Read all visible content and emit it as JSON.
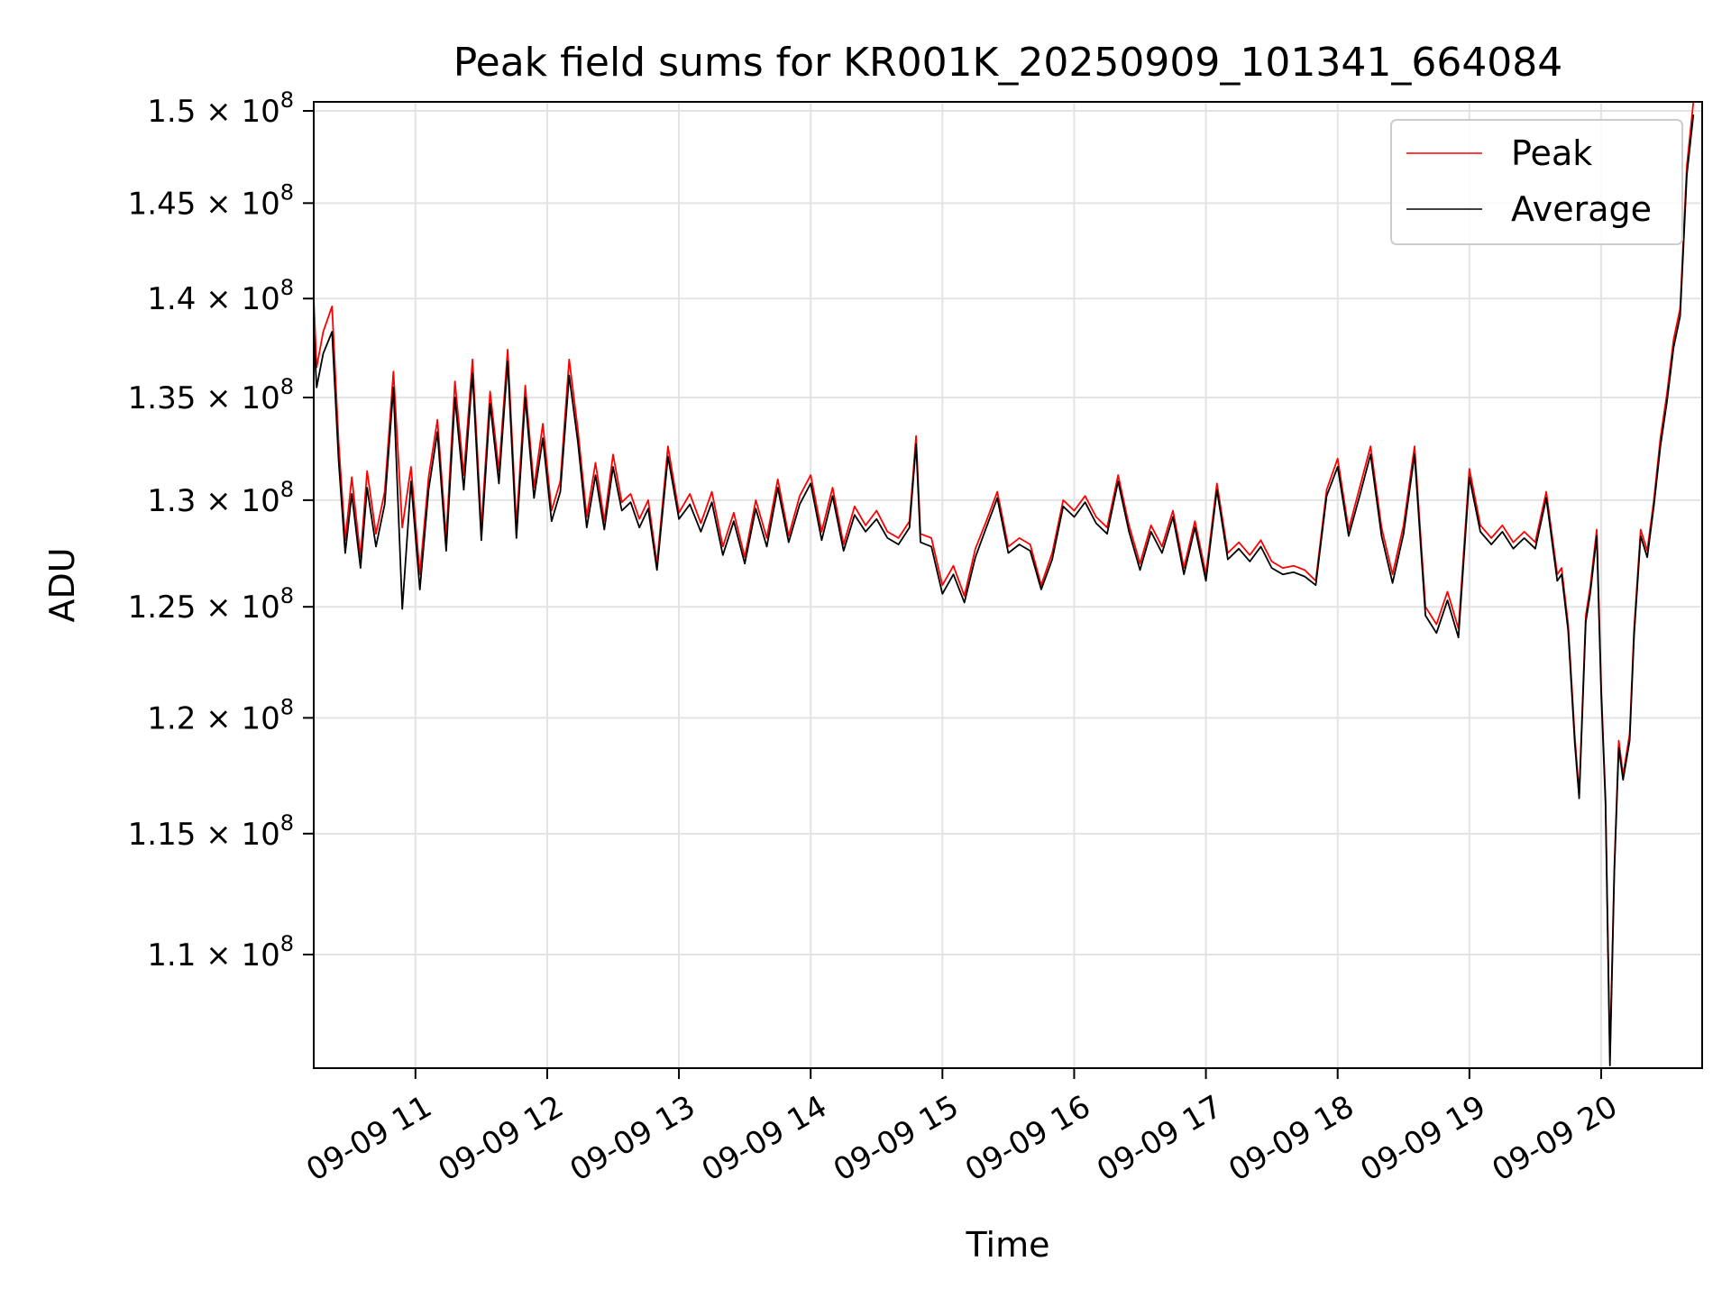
{
  "chart_data": {
    "type": "line",
    "title": "Peak field sums for KR001K_20250909_101341_664084",
    "xlabel": "Time",
    "ylabel": "ADU",
    "y_scale": "log",
    "grid": true,
    "legend_position": "top-right",
    "xlim": [
      "2025-09-09T10:13:41",
      "2025-09-09T20:46:00"
    ],
    "ylim": [
      105500000,
      150500000
    ],
    "x_ticks": [
      {
        "t": "2025-09-09T11:00",
        "label": "09-09 11"
      },
      {
        "t": "2025-09-09T12:00",
        "label": "09-09 12"
      },
      {
        "t": "2025-09-09T13:00",
        "label": "09-09 13"
      },
      {
        "t": "2025-09-09T14:00",
        "label": "09-09 14"
      },
      {
        "t": "2025-09-09T15:00",
        "label": "09-09 15"
      },
      {
        "t": "2025-09-09T16:00",
        "label": "09-09 16"
      },
      {
        "t": "2025-09-09T17:00",
        "label": "09-09 17"
      },
      {
        "t": "2025-09-09T18:00",
        "label": "09-09 18"
      },
      {
        "t": "2025-09-09T19:00",
        "label": "09-09 19"
      },
      {
        "t": "2025-09-09T20:00",
        "label": "09-09 20"
      }
    ],
    "y_ticks": [
      {
        "value": 110000000,
        "mantissa": "1.1",
        "exponent": "8"
      },
      {
        "value": 115000000,
        "mantissa": "1.15",
        "exponent": "8"
      },
      {
        "value": 120000000,
        "mantissa": "1.2",
        "exponent": "8"
      },
      {
        "value": 125000000,
        "mantissa": "1.25",
        "exponent": "8"
      },
      {
        "value": 130000000,
        "mantissa": "1.3",
        "exponent": "8"
      },
      {
        "value": 135000000,
        "mantissa": "1.35",
        "exponent": "8"
      },
      {
        "value": 140000000,
        "mantissa": "1.4",
        "exponent": "8"
      },
      {
        "value": 145000000,
        "mantissa": "1.45",
        "exponent": "8"
      },
      {
        "value": 150000000,
        "mantissa": "1.5",
        "exponent": "8"
      }
    ],
    "y_tick_base": "10",
    "times": [
      "2025-09-09T10:13:41",
      "2025-09-09T10:15",
      "2025-09-09T10:18",
      "2025-09-09T10:22",
      "2025-09-09T10:25",
      "2025-09-09T10:28",
      "2025-09-09T10:31",
      "2025-09-09T10:35",
      "2025-09-09T10:38",
      "2025-09-09T10:42",
      "2025-09-09T10:46",
      "2025-09-09T10:50",
      "2025-09-09T10:54",
      "2025-09-09T10:58",
      "2025-09-09T11:02",
      "2025-09-09T11:06",
      "2025-09-09T11:10",
      "2025-09-09T11:14",
      "2025-09-09T11:18",
      "2025-09-09T11:22",
      "2025-09-09T11:26",
      "2025-09-09T11:30",
      "2025-09-09T11:34",
      "2025-09-09T11:38",
      "2025-09-09T11:42",
      "2025-09-09T11:46",
      "2025-09-09T11:50",
      "2025-09-09T11:54",
      "2025-09-09T11:58",
      "2025-09-09T12:02",
      "2025-09-09T12:06",
      "2025-09-09T12:10",
      "2025-09-09T12:14",
      "2025-09-09T12:18",
      "2025-09-09T12:22",
      "2025-09-09T12:26",
      "2025-09-09T12:30",
      "2025-09-09T12:34",
      "2025-09-09T12:38",
      "2025-09-09T12:42",
      "2025-09-09T12:46",
      "2025-09-09T12:50",
      "2025-09-09T12:55",
      "2025-09-09T13:00",
      "2025-09-09T13:05",
      "2025-09-09T13:10",
      "2025-09-09T13:15",
      "2025-09-09T13:20",
      "2025-09-09T13:25",
      "2025-09-09T13:30",
      "2025-09-09T13:35",
      "2025-09-09T13:40",
      "2025-09-09T13:45",
      "2025-09-09T13:50",
      "2025-09-09T13:55",
      "2025-09-09T14:00",
      "2025-09-09T14:05",
      "2025-09-09T14:10",
      "2025-09-09T14:15",
      "2025-09-09T14:20",
      "2025-09-09T14:25",
      "2025-09-09T14:30",
      "2025-09-09T14:35",
      "2025-09-09T14:40",
      "2025-09-09T14:45",
      "2025-09-09T14:48",
      "2025-09-09T14:50",
      "2025-09-09T14:55",
      "2025-09-09T15:00",
      "2025-09-09T15:05",
      "2025-09-09T15:10",
      "2025-09-09T15:15",
      "2025-09-09T15:20",
      "2025-09-09T15:25",
      "2025-09-09T15:30",
      "2025-09-09T15:35",
      "2025-09-09T15:40",
      "2025-09-09T15:45",
      "2025-09-09T15:50",
      "2025-09-09T15:55",
      "2025-09-09T16:00",
      "2025-09-09T16:05",
      "2025-09-09T16:10",
      "2025-09-09T16:15",
      "2025-09-09T16:20",
      "2025-09-09T16:25",
      "2025-09-09T16:30",
      "2025-09-09T16:35",
      "2025-09-09T16:40",
      "2025-09-09T16:45",
      "2025-09-09T16:50",
      "2025-09-09T16:55",
      "2025-09-09T17:00",
      "2025-09-09T17:05",
      "2025-09-09T17:10",
      "2025-09-09T17:15",
      "2025-09-09T17:20",
      "2025-09-09T17:25",
      "2025-09-09T17:30",
      "2025-09-09T17:35",
      "2025-09-09T17:40",
      "2025-09-09T17:45",
      "2025-09-09T17:50",
      "2025-09-09T17:55",
      "2025-09-09T18:00",
      "2025-09-09T18:05",
      "2025-09-09T18:10",
      "2025-09-09T18:15",
      "2025-09-09T18:20",
      "2025-09-09T18:25",
      "2025-09-09T18:30",
      "2025-09-09T18:35",
      "2025-09-09T18:40",
      "2025-09-09T18:45",
      "2025-09-09T18:50",
      "2025-09-09T18:55",
      "2025-09-09T19:00",
      "2025-09-09T19:05",
      "2025-09-09T19:10",
      "2025-09-09T19:15",
      "2025-09-09T19:20",
      "2025-09-09T19:25",
      "2025-09-09T19:30",
      "2025-09-09T19:35",
      "2025-09-09T19:40",
      "2025-09-09T19:42",
      "2025-09-09T19:45",
      "2025-09-09T19:48",
      "2025-09-09T19:50",
      "2025-09-09T19:53",
      "2025-09-09T19:55",
      "2025-09-09T19:58",
      "2025-09-09T20:00",
      "2025-09-09T20:02",
      "2025-09-09T20:04",
      "2025-09-09T20:06",
      "2025-09-09T20:08",
      "2025-09-09T20:10",
      "2025-09-09T20:13",
      "2025-09-09T20:15",
      "2025-09-09T20:18",
      "2025-09-09T20:21",
      "2025-09-09T20:24",
      "2025-09-09T20:27",
      "2025-09-09T20:30",
      "2025-09-09T20:33",
      "2025-09-09T20:36",
      "2025-09-09T20:39",
      "2025-09-09T20:42",
      "2025-09-09T20:44",
      "2025-09-09T20:46"
    ],
    "series": [
      {
        "name": "Peak",
        "color": "#ff0000",
        "values": [
          140000000,
          136500000,
          138300000,
          139600000,
          132800000,
          128100000,
          131100000,
          127300000,
          131400000,
          128400000,
          130400000,
          136300000,
          128700000,
          131600000,
          126500000,
          131100000,
          133900000,
          128200000,
          135800000,
          131200000,
          136900000,
          128700000,
          135300000,
          131400000,
          137400000,
          128800000,
          135600000,
          130600000,
          133700000,
          129500000,
          130900000,
          136900000,
          133400000,
          129200000,
          131800000,
          129000000,
          132200000,
          129900000,
          130300000,
          129100000,
          130000000,
          127000000,
          132600000,
          129400000,
          130300000,
          128900000,
          130400000,
          127800000,
          129400000,
          127300000,
          130000000,
          128200000,
          131000000,
          128300000,
          130200000,
          131200000,
          128500000,
          130600000,
          127900000,
          129700000,
          128800000,
          129500000,
          128500000,
          128200000,
          129000000,
          133100000,
          128400000,
          128200000,
          126000000,
          126900000,
          125500000,
          127700000,
          129000000,
          130400000,
          127800000,
          128200000,
          127900000,
          126000000,
          127500000,
          130000000,
          129500000,
          130200000,
          129200000,
          128700000,
          131200000,
          128800000,
          127000000,
          128800000,
          127800000,
          129500000,
          126800000,
          129000000,
          126500000,
          130800000,
          127500000,
          128000000,
          127400000,
          128100000,
          127100000,
          126800000,
          126900000,
          126700000,
          126200000,
          130500000,
          132000000,
          128600000,
          130600000,
          132600000,
          128700000,
          126500000,
          128800000,
          132600000,
          125000000,
          124200000,
          125700000,
          124000000,
          131500000,
          128800000,
          128200000,
          128800000,
          128000000,
          128500000,
          128000000,
          130400000,
          126500000,
          126800000,
          124200000,
          119200000,
          116700000,
          124600000,
          125900000,
          128600000,
          121400000,
          116500000,
          106000000,
          113600000,
          119000000,
          117500000,
          119300000,
          124000000,
          128600000,
          127600000,
          130000000,
          133000000,
          135200000,
          137900000,
          139500000,
          147000000,
          150500000
        ]
      },
      {
        "name": "Average",
        "color": "#000000",
        "values": [
          138300000,
          135500000,
          137200000,
          138300000,
          131900000,
          127500000,
          130300000,
          126800000,
          130600000,
          127800000,
          129800000,
          135500000,
          124900000,
          130900000,
          125800000,
          130500000,
          133300000,
          127600000,
          135000000,
          130500000,
          136200000,
          128100000,
          134700000,
          130800000,
          136800000,
          128200000,
          135000000,
          130100000,
          133000000,
          129000000,
          130400000,
          136100000,
          132800000,
          128700000,
          131200000,
          128600000,
          131600000,
          129500000,
          129900000,
          128700000,
          129600000,
          126700000,
          132100000,
          129100000,
          129800000,
          128500000,
          129900000,
          127400000,
          129000000,
          127000000,
          129600000,
          127800000,
          130600000,
          128000000,
          129800000,
          130800000,
          128100000,
          130200000,
          127600000,
          129300000,
          128500000,
          129100000,
          128200000,
          127900000,
          128700000,
          132700000,
          128000000,
          127800000,
          125600000,
          126500000,
          125200000,
          127300000,
          128700000,
          130100000,
          127500000,
          127900000,
          127600000,
          125800000,
          127200000,
          129700000,
          129200000,
          129900000,
          128900000,
          128400000,
          130900000,
          128500000,
          126700000,
          128500000,
          127500000,
          129200000,
          126500000,
          128700000,
          126200000,
          130500000,
          127200000,
          127700000,
          127100000,
          127800000,
          126800000,
          126500000,
          126600000,
          126400000,
          126000000,
          130200000,
          131600000,
          128300000,
          130200000,
          132200000,
          128300000,
          126100000,
          128400000,
          132200000,
          124600000,
          123800000,
          125300000,
          123600000,
          131100000,
          128500000,
          127900000,
          128500000,
          127700000,
          128200000,
          127700000,
          130100000,
          126200000,
          126500000,
          123900000,
          118900000,
          116500000,
          124300000,
          125600000,
          128300000,
          121100000,
          116300000,
          105600000,
          113400000,
          118700000,
          117300000,
          119000000,
          123700000,
          128300000,
          127300000,
          129700000,
          132600000,
          134800000,
          137500000,
          139100000,
          146500000,
          149800000
        ]
      }
    ]
  }
}
